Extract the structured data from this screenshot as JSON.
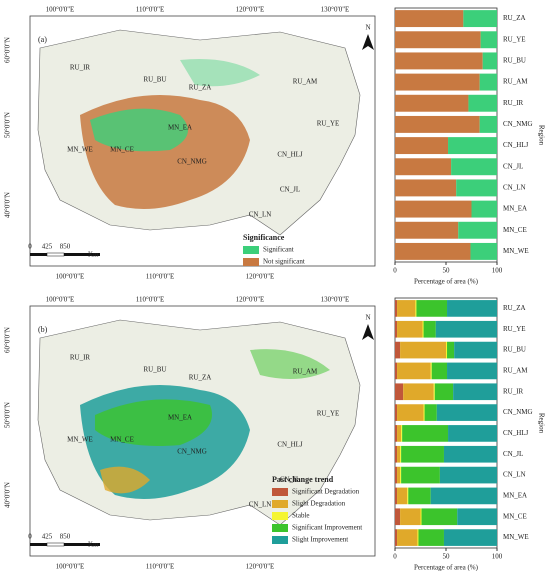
{
  "maps": [
    {
      "panel": "(a)",
      "north": "N",
      "lon_labels": [
        "100°0'0\"E",
        "110°0'0\"E",
        "120°0'0\"E",
        "130°0'0\"E"
      ],
      "lat_labels": [
        "60°0'0\"N",
        "50°0'0\"N",
        "40°0'0\"N"
      ],
      "scale_labels": [
        "0",
        "425",
        "850",
        "Km"
      ],
      "region_labels": [
        "RU_IR",
        "RU_BU",
        "RU_ZA",
        "RU_AM",
        "RU_YE",
        "CN_HLJ",
        "MN_EA",
        "MN_WE",
        "MN_CE",
        "CN_NMG",
        "CN_JL",
        "CN_LN"
      ],
      "legend_title": "Significance",
      "legend": [
        {
          "label": "Significant",
          "color": "#3ccf7a"
        },
        {
          "label": "Not significant",
          "color": "#c87941"
        }
      ]
    },
    {
      "panel": "(b)",
      "north": "N",
      "lon_labels": [
        "100°0'0\"E",
        "110°0'0\"E",
        "120°0'0\"E",
        "130°0'0\"E"
      ],
      "lat_labels": [
        "60°0'0\"N",
        "50°0'0\"N",
        "40°0'0\"N"
      ],
      "scale_labels": [
        "0",
        "425",
        "850",
        "Km"
      ],
      "region_labels": [
        "RU_IR",
        "RU_BU",
        "RU_ZA",
        "RU_AM",
        "RU_YE",
        "CN_HLJ",
        "MN_EA",
        "MN_WE",
        "MN_CE",
        "CN_NMG",
        "CN_JL",
        "CN_LN"
      ],
      "legend_title": "Past change trend",
      "legend": [
        {
          "label": "Significant Degradation",
          "color": "#c0573a"
        },
        {
          "label": "Slight Degradation",
          "color": "#e0a92a"
        },
        {
          "label": "Stable",
          "color": "#f5f530"
        },
        {
          "label": "Significant Improvement",
          "color": "#3cc42c"
        },
        {
          "label": "Slight Improvement",
          "color": "#1f9e9a"
        }
      ]
    }
  ],
  "chart_data": [
    {
      "type": "bar",
      "orientation": "horizontal",
      "stacked": true,
      "xlabel": "Percentage of area (%)",
      "ylabel": "Region",
      "categories": [
        "RU_ZA",
        "RU_YE",
        "RU_BU",
        "RU_AM",
        "RU_IR",
        "CN_NMG",
        "CN_HLJ",
        "CN_JL",
        "CN_LN",
        "MN_EA",
        "MN_CE",
        "MN_WE"
      ],
      "xlim": [
        0,
        100
      ],
      "xticks": [
        0,
        50,
        100
      ],
      "series": [
        {
          "name": "Not significant",
          "color": "#c87941",
          "values": [
            67,
            84,
            86,
            83,
            72,
            83,
            52,
            55,
            60,
            75,
            62,
            74
          ]
        },
        {
          "name": "Significant",
          "color": "#3ccf7a",
          "values": [
            33,
            16,
            14,
            17,
            28,
            17,
            48,
            45,
            40,
            25,
            38,
            26
          ]
        }
      ]
    },
    {
      "type": "bar",
      "orientation": "horizontal",
      "stacked": true,
      "xlabel": "Percentage of area (%)",
      "ylabel": "Region",
      "categories": [
        "RU_ZA",
        "RU_YE",
        "RU_BU",
        "RU_AM",
        "RU_IR",
        "CN_NMG",
        "CN_HLJ",
        "CN_JL",
        "CN_LN",
        "MN_EA",
        "MN_CE",
        "MN_WE"
      ],
      "xlim": [
        0,
        100
      ],
      "xticks": [
        0,
        50,
        100
      ],
      "series": [
        {
          "name": "Significant Degradation",
          "color": "#c0573a",
          "values": [
            2,
            2,
            5,
            2,
            8,
            2,
            2,
            2,
            2,
            2,
            5,
            2
          ]
        },
        {
          "name": "Slight Degradation",
          "color": "#e0a92a",
          "values": [
            18,
            25,
            45,
            33,
            30,
            26,
            4,
            3,
            3,
            10,
            20,
            20
          ]
        },
        {
          "name": "Stable",
          "color": "#f5f530",
          "values": [
            1,
            1,
            1,
            1,
            1,
            1,
            1,
            1,
            1,
            1,
            1,
            1
          ]
        },
        {
          "name": "Significant Improvement",
          "color": "#3cc42c",
          "values": [
            30,
            12,
            7,
            15,
            18,
            12,
            45,
            42,
            38,
            22,
            35,
            25
          ]
        },
        {
          "name": "Slight Improvement",
          "color": "#1f9e9a",
          "values": [
            49,
            60,
            42,
            49,
            43,
            59,
            48,
            52,
            56,
            65,
            39,
            52
          ]
        }
      ]
    }
  ]
}
